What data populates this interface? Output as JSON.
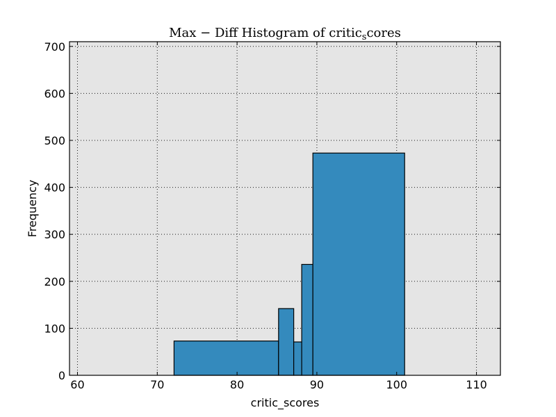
{
  "chart_data": {
    "type": "bar",
    "title": "Max − Diff Histogram of critic_scores",
    "title_parts": {
      "main": "Max − Diff Histogram of critic",
      "subscript": "s",
      "rest": "cores"
    },
    "xlabel": "critic_scores",
    "ylabel": "Frequency",
    "xlim": [
      59,
      113
    ],
    "ylim": [
      0,
      710
    ],
    "xticks": [
      60,
      70,
      80,
      90,
      100,
      110
    ],
    "yticks": [
      0,
      100,
      200,
      300,
      400,
      500,
      600,
      700
    ],
    "grid": true,
    "bins": [
      {
        "x0": 72.1,
        "x1": 85.2,
        "value": 73
      },
      {
        "x0": 85.2,
        "x1": 87.1,
        "value": 142
      },
      {
        "x0": 87.1,
        "x1": 88.1,
        "value": 71
      },
      {
        "x0": 88.1,
        "x1": 89.5,
        "value": 236
      },
      {
        "x0": 89.5,
        "x1": 101.0,
        "value": 473
      }
    ],
    "colors": {
      "bar": "#348abd",
      "plot_background": "#e5e5e5"
    }
  }
}
